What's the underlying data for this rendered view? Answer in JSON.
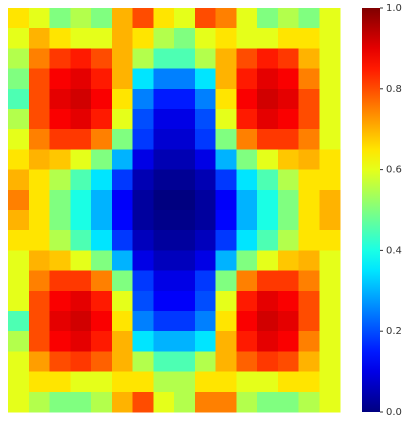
{
  "chart_data": {
    "type": "heatmap",
    "colormap": "jet",
    "zlim": [
      0,
      1
    ],
    "colorbar_ticks": [
      {
        "value": 0,
        "label": "0.0"
      },
      0.2,
      0.4,
      0.6,
      0.8,
      {
        "value": 1,
        "label": "1.0"
      }
    ],
    "z": [
      [
        0.65,
        0.6,
        0.5,
        0.55,
        0.5,
        0.7,
        0.8,
        0.65,
        0.6,
        0.8,
        0.75,
        0.6,
        0.5,
        0.55,
        0.5,
        0.6
      ],
      [
        0.6,
        0.7,
        0.65,
        0.6,
        0.6,
        0.7,
        0.65,
        0.55,
        0.5,
        0.6,
        0.65,
        0.6,
        0.6,
        0.65,
        0.65,
        0.6
      ],
      [
        0.55,
        0.75,
        0.82,
        0.85,
        0.8,
        0.7,
        0.55,
        0.45,
        0.45,
        0.55,
        0.7,
        0.8,
        0.85,
        0.82,
        0.7,
        0.6
      ],
      [
        0.5,
        0.8,
        0.88,
        0.9,
        0.85,
        0.7,
        0.35,
        0.25,
        0.25,
        0.35,
        0.7,
        0.85,
        0.9,
        0.88,
        0.75,
        0.6
      ],
      [
        0.45,
        0.8,
        0.9,
        0.92,
        0.88,
        0.65,
        0.25,
        0.15,
        0.15,
        0.25,
        0.65,
        0.88,
        0.92,
        0.9,
        0.8,
        0.6
      ],
      [
        0.55,
        0.8,
        0.88,
        0.9,
        0.85,
        0.6,
        0.2,
        0.1,
        0.1,
        0.2,
        0.6,
        0.85,
        0.9,
        0.88,
        0.8,
        0.6
      ],
      [
        0.6,
        0.75,
        0.82,
        0.82,
        0.75,
        0.5,
        0.18,
        0.08,
        0.08,
        0.18,
        0.5,
        0.75,
        0.82,
        0.82,
        0.75,
        0.6
      ],
      [
        0.65,
        0.7,
        0.68,
        0.6,
        0.5,
        0.3,
        0.1,
        0.05,
        0.05,
        0.1,
        0.3,
        0.5,
        0.6,
        0.68,
        0.7,
        0.65
      ],
      [
        0.7,
        0.65,
        0.55,
        0.45,
        0.35,
        0.18,
        0.05,
        0.02,
        0.02,
        0.05,
        0.18,
        0.35,
        0.45,
        0.55,
        0.65,
        0.65
      ],
      [
        0.75,
        0.65,
        0.5,
        0.4,
        0.3,
        0.12,
        0.03,
        0.0,
        0.0,
        0.03,
        0.12,
        0.3,
        0.4,
        0.5,
        0.65,
        0.7
      ],
      [
        0.7,
        0.65,
        0.5,
        0.4,
        0.3,
        0.13,
        0.03,
        0.01,
        0.01,
        0.03,
        0.13,
        0.3,
        0.4,
        0.5,
        0.65,
        0.7
      ],
      [
        0.65,
        0.65,
        0.55,
        0.45,
        0.35,
        0.18,
        0.06,
        0.03,
        0.03,
        0.06,
        0.18,
        0.35,
        0.45,
        0.55,
        0.65,
        0.65
      ],
      [
        0.6,
        0.7,
        0.68,
        0.6,
        0.5,
        0.3,
        0.1,
        0.06,
        0.06,
        0.1,
        0.3,
        0.5,
        0.6,
        0.68,
        0.7,
        0.6
      ],
      [
        0.6,
        0.75,
        0.82,
        0.82,
        0.75,
        0.5,
        0.18,
        0.1,
        0.1,
        0.18,
        0.5,
        0.75,
        0.82,
        0.82,
        0.75,
        0.6
      ],
      [
        0.6,
        0.8,
        0.88,
        0.9,
        0.85,
        0.6,
        0.2,
        0.12,
        0.12,
        0.2,
        0.6,
        0.85,
        0.9,
        0.88,
        0.8,
        0.6
      ],
      [
        0.45,
        0.8,
        0.9,
        0.92,
        0.88,
        0.65,
        0.25,
        0.18,
        0.18,
        0.25,
        0.65,
        0.88,
        0.92,
        0.9,
        0.8,
        0.6
      ],
      [
        0.55,
        0.8,
        0.88,
        0.9,
        0.85,
        0.7,
        0.35,
        0.3,
        0.3,
        0.35,
        0.7,
        0.85,
        0.9,
        0.88,
        0.75,
        0.6
      ],
      [
        0.6,
        0.72,
        0.8,
        0.82,
        0.78,
        0.7,
        0.55,
        0.45,
        0.45,
        0.55,
        0.7,
        0.78,
        0.82,
        0.8,
        0.7,
        0.6
      ],
      [
        0.6,
        0.65,
        0.65,
        0.6,
        0.6,
        0.65,
        0.65,
        0.55,
        0.55,
        0.65,
        0.65,
        0.6,
        0.6,
        0.65,
        0.65,
        0.6
      ],
      [
        0.6,
        0.55,
        0.5,
        0.5,
        0.55,
        0.7,
        0.8,
        0.6,
        0.55,
        0.75,
        0.75,
        0.55,
        0.5,
        0.5,
        0.55,
        0.6
      ]
    ]
  }
}
